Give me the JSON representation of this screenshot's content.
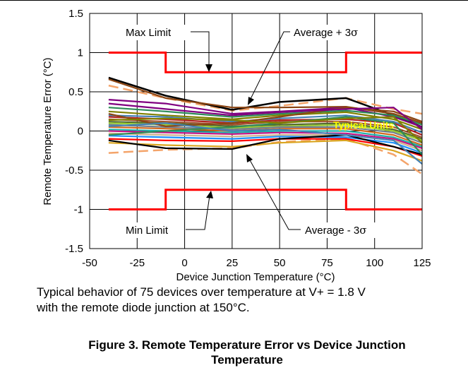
{
  "chart_data": {
    "type": "line",
    "xlabel": "Device Junction Temperature (°C)",
    "ylabel": "Remote Temperature Error (°C)",
    "xlim": [
      -50,
      125
    ],
    "ylim": [
      -1.5,
      1.5
    ],
    "x_ticks": [
      -50,
      -25,
      0,
      25,
      50,
      75,
      100,
      125
    ],
    "y_ticks": [
      -1.5,
      -1,
      -0.5,
      0,
      0.5,
      1,
      1.5
    ],
    "x_tick_labels": [
      "-50",
      "-25",
      "0",
      "25",
      "50",
      "75",
      "100",
      "125"
    ],
    "y_tick_labels": [
      "-1.5",
      "-1",
      "-0.5",
      "0",
      "0.5",
      "1",
      "1.5"
    ],
    "grid": true,
    "colors": {
      "limit": "#ff0000",
      "sigma": "#f4a46a",
      "typical_units_label": "#ffff00",
      "unit_palette": [
        "#000000",
        "#8b4513",
        "#800080",
        "#2e8b57",
        "#808000",
        "#4682b4",
        "#b22222",
        "#a0522d",
        "#556b2f",
        "#9acd32",
        "#708090",
        "#d2691e",
        "#20b2aa",
        "#c71585",
        "#cdb38b",
        "#1e90ff",
        "#ff0000",
        "#daa520"
      ]
    },
    "annotations": {
      "max_limit": "Max Limit",
      "min_limit": "Min Limit",
      "avg_plus": "Average + 3",
      "avg_minus": "Average - 3",
      "sigma_symbol": "σ",
      "typical_units": "Typical Units"
    },
    "series": [
      {
        "role": "limit",
        "x": [
          -40,
          -10,
          -10,
          85,
          85,
          125
        ],
        "y": [
          1,
          1,
          0.75,
          0.75,
          1,
          1
        ]
      },
      {
        "role": "limit",
        "x": [
          -40,
          -10,
          -10,
          85,
          85,
          125
        ],
        "y": [
          -1,
          -1,
          -0.75,
          -0.75,
          -1,
          -1
        ]
      },
      {
        "role": "sigma",
        "x": [
          -40,
          -10,
          25,
          50,
          85,
          110,
          125
        ],
        "y": [
          0.58,
          0.42,
          0.26,
          0.32,
          0.42,
          0.28,
          0.22
        ]
      },
      {
        "role": "sigma",
        "x": [
          -40,
          -10,
          25,
          50,
          85,
          110,
          125
        ],
        "y": [
          -0.28,
          -0.24,
          -0.22,
          -0.14,
          -0.1,
          -0.3,
          -0.55
        ]
      },
      {
        "role": "unit",
        "x": [
          -40,
          -10,
          25,
          50,
          85,
          110,
          125
        ],
        "y": [
          0.68,
          0.45,
          0.27,
          0.37,
          0.42,
          0.2,
          0.05
        ]
      },
      {
        "role": "unit",
        "x": [
          -40,
          -10,
          25,
          50,
          85,
          110,
          125
        ],
        "y": [
          0.66,
          0.42,
          0.3,
          0.3,
          0.31,
          0.22,
          0.1
        ]
      },
      {
        "role": "unit",
        "x": [
          -40,
          -10,
          25,
          50,
          85,
          110,
          125
        ],
        "y": [
          0.4,
          0.35,
          0.22,
          0.25,
          0.3,
          0.18,
          0.05
        ]
      },
      {
        "role": "unit",
        "x": [
          -40,
          -10,
          25,
          50,
          85,
          110,
          125
        ],
        "y": [
          0.3,
          0.25,
          0.18,
          0.22,
          0.26,
          0.2,
          0.08
        ]
      },
      {
        "role": "unit",
        "x": [
          -40,
          -10,
          25,
          50,
          85,
          110,
          125
        ],
        "y": [
          0.25,
          0.2,
          0.15,
          0.2,
          0.24,
          0.15,
          0.02
        ]
      },
      {
        "role": "unit",
        "x": [
          -40,
          -10,
          25,
          50,
          85,
          110,
          125
        ],
        "y": [
          0.2,
          0.18,
          0.12,
          0.16,
          0.2,
          0.12,
          -0.02
        ]
      },
      {
        "role": "unit",
        "x": [
          -40,
          -10,
          25,
          50,
          85,
          110,
          125
        ],
        "y": [
          0.18,
          0.15,
          0.1,
          0.14,
          0.15,
          0.1,
          -0.05
        ]
      },
      {
        "role": "unit",
        "x": [
          -40,
          -10,
          25,
          50,
          85,
          110,
          125
        ],
        "y": [
          0.15,
          0.12,
          0.08,
          0.12,
          0.12,
          0.05,
          -0.08
        ]
      },
      {
        "role": "unit",
        "x": [
          -40,
          -10,
          25,
          50,
          85,
          110,
          125
        ],
        "y": [
          0.12,
          0.1,
          0.06,
          0.08,
          0.1,
          0.02,
          -0.1
        ]
      },
      {
        "role": "unit",
        "x": [
          -40,
          -10,
          25,
          50,
          85,
          110,
          125
        ],
        "y": [
          0.1,
          0.08,
          0.04,
          0.06,
          0.08,
          0.0,
          -0.12
        ]
      },
      {
        "role": "unit",
        "x": [
          -40,
          -10,
          25,
          50,
          85,
          110,
          125
        ],
        "y": [
          0.08,
          0.05,
          0.02,
          0.05,
          0.05,
          -0.02,
          -0.15
        ]
      },
      {
        "role": "unit",
        "x": [
          -40,
          -10,
          25,
          50,
          85,
          110,
          125
        ],
        "y": [
          0.05,
          0.03,
          0.0,
          0.03,
          0.03,
          -0.05,
          -0.18
        ]
      },
      {
        "role": "unit",
        "x": [
          -40,
          -10,
          25,
          50,
          85,
          110,
          125
        ],
        "y": [
          0.02,
          0.0,
          -0.02,
          0.0,
          0.0,
          -0.08,
          -0.2
        ]
      },
      {
        "role": "unit",
        "x": [
          -40,
          -10,
          25,
          50,
          85,
          110,
          125
        ],
        "y": [
          0.0,
          -0.02,
          -0.04,
          -0.02,
          -0.03,
          -0.1,
          -0.22
        ]
      },
      {
        "role": "unit",
        "x": [
          -40,
          -10,
          25,
          50,
          85,
          110,
          125
        ],
        "y": [
          -0.03,
          -0.05,
          -0.07,
          -0.05,
          -0.05,
          -0.12,
          -0.25
        ]
      },
      {
        "role": "unit",
        "x": [
          -40,
          -10,
          25,
          50,
          85,
          110,
          125
        ],
        "y": [
          -0.06,
          -0.08,
          -0.1,
          -0.07,
          -0.08,
          -0.15,
          -0.28
        ]
      },
      {
        "role": "unit",
        "x": [
          -40,
          -10,
          25,
          50,
          85,
          110,
          125
        ],
        "y": [
          -0.1,
          -0.12,
          -0.13,
          -0.1,
          -0.1,
          -0.2,
          -0.32
        ]
      },
      {
        "role": "unit",
        "x": [
          -40,
          -10,
          25,
          50,
          85,
          110,
          125
        ],
        "y": [
          -0.15,
          -0.18,
          -0.2,
          -0.15,
          -0.12,
          -0.25,
          -0.38
        ]
      },
      {
        "role": "unit",
        "x": [
          -40,
          -10,
          25,
          50,
          85,
          110,
          125
        ],
        "y": [
          -0.12,
          -0.22,
          -0.23,
          -0.1,
          -0.05,
          -0.2,
          -0.3
        ]
      },
      {
        "role": "unit",
        "x": [
          -40,
          -10,
          25,
          50,
          85,
          110,
          125
        ],
        "y": [
          0.22,
          0.06,
          0.1,
          0.18,
          0.3,
          0.25,
          0.12
        ]
      },
      {
        "role": "unit",
        "x": [
          -40,
          -10,
          25,
          50,
          85,
          110,
          125
        ],
        "y": [
          0.35,
          0.28,
          0.2,
          0.24,
          0.28,
          0.3,
          0.02
        ]
      },
      {
        "role": "unit",
        "x": [
          -40,
          -10,
          25,
          50,
          85,
          110,
          125
        ],
        "y": [
          -0.05,
          0.0,
          0.05,
          0.1,
          0.18,
          0.1,
          -0.3
        ]
      },
      {
        "role": "unit",
        "x": [
          -40,
          -10,
          25,
          50,
          85,
          110,
          125
        ],
        "y": [
          0.14,
          0.16,
          0.14,
          0.1,
          0.16,
          0.18,
          -0.15
        ]
      },
      {
        "role": "unit",
        "x": [
          -40,
          -10,
          25,
          50,
          85,
          110,
          125
        ],
        "y": [
          0.06,
          0.1,
          0.0,
          0.02,
          -0.05,
          -0.12,
          -0.42
        ]
      }
    ]
  },
  "caption": {
    "line1": "Typical behavior of 75 devices over temperature at V+ = 1.8 V",
    "line2": "with the remote diode junction at 150°C."
  },
  "figure": {
    "title_line1": "Figure 3. Remote Temperature Error vs Device Junction",
    "title_line2": "Temperature"
  }
}
